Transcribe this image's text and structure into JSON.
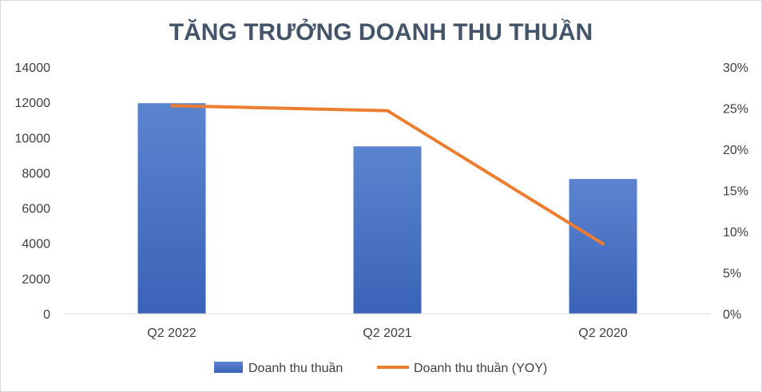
{
  "chart_data": {
    "type": "bar",
    "title": "TĂNG TRƯỞNG DOANH THU THUẦN",
    "categories": [
      "Q2 2022",
      "Q2 2021",
      "Q2 2020"
    ],
    "series": [
      {
        "name": "Doanh thu thuần",
        "type": "bar",
        "axis": "left",
        "values": [
          11950,
          9500,
          7650
        ],
        "color": "#4472C4"
      },
      {
        "name": "Doanh thu thuần (YOY)",
        "type": "line",
        "axis": "right",
        "values": [
          0.253,
          0.247,
          0.085
        ],
        "color": "#ED7D31"
      }
    ],
    "y_left": {
      "min": 0,
      "max": 14000,
      "step": 2000,
      "tick_labels": [
        "0",
        "2000",
        "4000",
        "6000",
        "8000",
        "10000",
        "12000",
        "14000"
      ]
    },
    "y_right": {
      "min": 0,
      "max": 0.3,
      "step": 0.05,
      "tick_labels": [
        "0%",
        "5%",
        "10%",
        "15%",
        "20%",
        "25%",
        "30%"
      ]
    },
    "grid": false,
    "legend_position": "bottom"
  }
}
